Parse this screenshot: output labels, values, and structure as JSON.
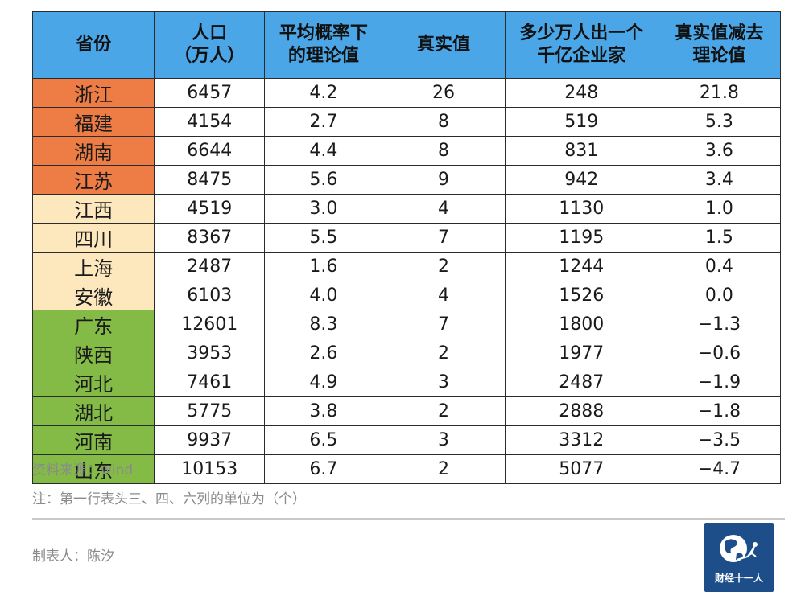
{
  "table": {
    "headers": [
      [
        "省份"
      ],
      [
        "人口",
        "（万人）"
      ],
      [
        "平均概率下",
        "的理论值"
      ],
      [
        "真实值"
      ],
      [
        "多少万人出一个",
        "千亿企业家"
      ],
      [
        "真实值减去",
        "理论值"
      ]
    ],
    "tier_colors": {
      "1": "#ee7d45",
      "2": "#fde7bd",
      "3": "#84bb47"
    },
    "rows": [
      {
        "tier": 1,
        "cells": [
          "浙江",
          "6457",
          "4.2",
          "26",
          "248",
          "21.8"
        ]
      },
      {
        "tier": 1,
        "cells": [
          "福建",
          "4154",
          "2.7",
          "8",
          "519",
          "5.3"
        ]
      },
      {
        "tier": 1,
        "cells": [
          "湖南",
          "6644",
          "4.4",
          "8",
          "831",
          "3.6"
        ]
      },
      {
        "tier": 1,
        "cells": [
          "江苏",
          "8475",
          "5.6",
          "9",
          "942",
          "3.4"
        ]
      },
      {
        "tier": 2,
        "cells": [
          "江西",
          "4519",
          "3.0",
          "4",
          "1130",
          "1.0"
        ]
      },
      {
        "tier": 2,
        "cells": [
          "四川",
          "8367",
          "5.5",
          "7",
          "1195",
          "1.5"
        ]
      },
      {
        "tier": 2,
        "cells": [
          "上海",
          "2487",
          "1.6",
          "2",
          "1244",
          "0.4"
        ]
      },
      {
        "tier": 2,
        "cells": [
          "安徽",
          "6103",
          "4.0",
          "4",
          "1526",
          "0.0"
        ]
      },
      {
        "tier": 3,
        "cells": [
          "广东",
          "12601",
          "8.3",
          "7",
          "1800",
          "−1.3"
        ]
      },
      {
        "tier": 3,
        "cells": [
          "陕西",
          "3953",
          "2.6",
          "2",
          "1977",
          "−0.6"
        ]
      },
      {
        "tier": 3,
        "cells": [
          "河北",
          "7461",
          "4.9",
          "3",
          "2487",
          "−1.9"
        ]
      },
      {
        "tier": 3,
        "cells": [
          "湖北",
          "5775",
          "3.8",
          "2",
          "2888",
          "−1.8"
        ]
      },
      {
        "tier": 3,
        "cells": [
          "河南",
          "9937",
          "6.5",
          "3",
          "3312",
          "−3.5"
        ]
      },
      {
        "tier": 3,
        "cells": [
          "山东",
          "10153",
          "6.7",
          "2",
          "5077",
          "−4.7"
        ]
      }
    ]
  },
  "footer": {
    "source": "资料来源：wind",
    "note": "注：第一行表头三、四、六列的单位为（个）",
    "author": "制表人：陈汐"
  },
  "logo": {
    "text": "财经十一人",
    "icon": "globe-icon"
  }
}
